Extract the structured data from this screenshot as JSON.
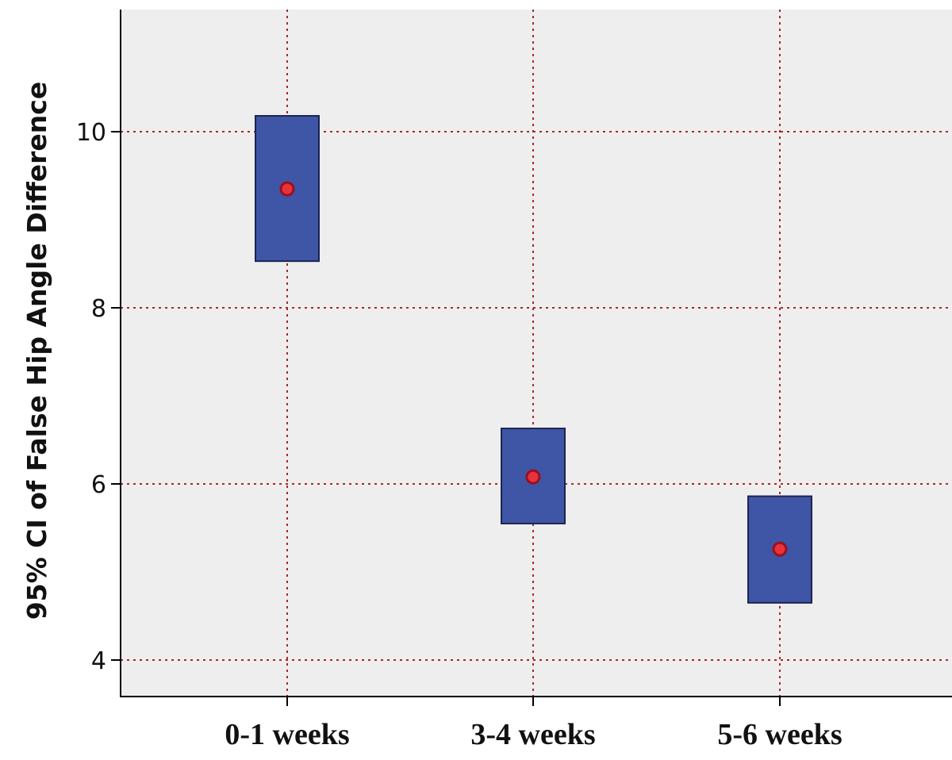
{
  "chart_data": {
    "type": "error-bar",
    "title": "",
    "xlabel": "",
    "ylabel": "95% CI  of False Hip Angle Difference",
    "categories": [
      "0-1 weeks",
      "3-4 weeks",
      "5-6 weeks"
    ],
    "series": [
      {
        "mean": [
          9.35,
          6.08,
          5.26
        ],
        "ci_lower": [
          8.53,
          5.55,
          4.65
        ],
        "ci_upper": [
          10.18,
          6.63,
          5.86
        ]
      }
    ],
    "y_ticks": [
      4,
      6,
      8,
      10
    ],
    "ylim": [
      3.6,
      11.4
    ],
    "grid": true,
    "legend": "none",
    "colors": {
      "plot_background": "#efeeef",
      "box_fill": "#3f55a5",
      "box_stroke": "#1c2450",
      "mean_marker": "#e8323c",
      "mean_marker_stroke": "#9a1020",
      "grid": "#a52a2a",
      "axis": "#000000"
    }
  }
}
